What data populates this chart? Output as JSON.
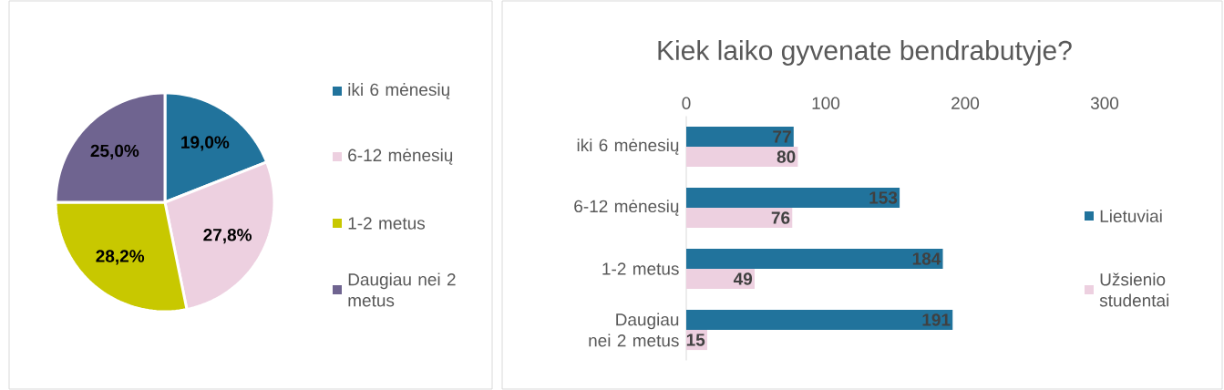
{
  "chart_data": [
    {
      "type": "pie",
      "categories": [
        "iki 6 mėnesių",
        "6-12 mėnesių",
        "1-2 metus",
        "Daugiau nei 2 metus"
      ],
      "values": [
        19.0,
        27.8,
        28.2,
        25.0
      ],
      "colors": [
        "#21739c",
        "#edd0e0",
        "#c8c800",
        "#6f6490"
      ],
      "value_labels": [
        "19,0%",
        "27,8%",
        "28,2%",
        "25,0%"
      ],
      "legend": "right"
    },
    {
      "type": "bar",
      "orientation": "horizontal",
      "title": "Kiek laiko gyvenate bendrabutyje?",
      "categories": [
        "iki 6 mėnesių",
        "6-12 mėnesių",
        "1-2 metus",
        "Daugiau nei 2 metus"
      ],
      "series": [
        {
          "name": "Lietuviai",
          "color": "#21739c",
          "values": [
            77,
            153,
            184,
            191
          ]
        },
        {
          "name": "Užsienio studentai",
          "color": "#edd0e0",
          "values": [
            80,
            76,
            49,
            15
          ]
        }
      ],
      "xlim": [
        0,
        300
      ],
      "xticks": [
        0,
        100,
        200,
        300
      ],
      "data_labels": true,
      "legend": "right"
    }
  ]
}
